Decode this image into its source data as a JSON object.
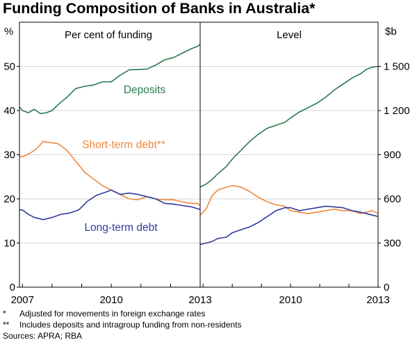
{
  "title": "Funding Composition of Banks in Australia*",
  "colors": {
    "deposits": "#2a7a4e",
    "short_term": "#f0883a",
    "long_term": "#2e3a9c",
    "axis": "#000000"
  },
  "footnotes": [
    {
      "mark": "*",
      "text": "Adjusted for movements in foreign exchange rates"
    },
    {
      "mark": "**",
      "text": "Includes deposits and intragroup funding from non-residents"
    }
  ],
  "sources": "Sources: APRA; RBA",
  "chart_data": [
    {
      "type": "line",
      "panel_title": "Per cent of funding",
      "ylabel": "%",
      "ylim": [
        0,
        60
      ],
      "yticks": [
        "0",
        "10",
        "20",
        "30",
        "40",
        "50"
      ],
      "xlim": [
        2006.9,
        2013.0
      ],
      "xticks": [
        "2007",
        "2010",
        "2013"
      ],
      "series": [
        {
          "name": "Deposits",
          "key": "deposits",
          "x": [
            2006.9,
            2007.0,
            2007.2,
            2007.4,
            2007.6,
            2007.8,
            2008.0,
            2008.2,
            2008.5,
            2008.8,
            2009.1,
            2009.4,
            2009.7,
            2010.0,
            2010.3,
            2010.6,
            2010.9,
            2011.2,
            2011.5,
            2011.8,
            2012.1,
            2012.4,
            2012.7,
            2012.9,
            2013.0
          ],
          "y": [
            40.8,
            40,
            39.5,
            40.3,
            39.3,
            39.5,
            40,
            41.3,
            43,
            45,
            45.5,
            45.8,
            46.5,
            46.5,
            48,
            49.2,
            49.3,
            49.4,
            50.3,
            51.5,
            52,
            53,
            54,
            54.5,
            55
          ]
        },
        {
          "name": "Short-term debt**",
          "key": "short_term",
          "x": [
            2006.9,
            2007.0,
            2007.3,
            2007.5,
            2007.7,
            2008.0,
            2008.2,
            2008.5,
            2008.8,
            2009.1,
            2009.4,
            2009.7,
            2010.0,
            2010.3,
            2010.6,
            2010.9,
            2011.2,
            2011.5,
            2011.8,
            2012.1,
            2012.4,
            2012.7,
            2012.9,
            2013.0
          ],
          "y": [
            29.7,
            29.5,
            30.5,
            31.5,
            33,
            32.7,
            32.5,
            31,
            28.5,
            26,
            24.5,
            23,
            22,
            21,
            20,
            19.8,
            20.5,
            20,
            19.8,
            19.8,
            19.3,
            19,
            19,
            18.5
          ]
        },
        {
          "name": "Long-term debt",
          "key": "long_term",
          "x": [
            2006.9,
            2007.0,
            2007.2,
            2007.4,
            2007.7,
            2008.0,
            2008.3,
            2008.6,
            2008.9,
            2009.2,
            2009.5,
            2009.8,
            2010.0,
            2010.3,
            2010.6,
            2010.9,
            2011.2,
            2011.5,
            2011.8,
            2012.1,
            2012.4,
            2012.7,
            2012.9,
            2013.0
          ],
          "y": [
            17.5,
            17.5,
            16.5,
            15.8,
            15.3,
            15.8,
            16.5,
            16.8,
            17.5,
            19.5,
            20.8,
            21.5,
            22,
            21,
            21.3,
            21,
            20.5,
            20,
            19,
            18.8,
            18.5,
            18.2,
            17.8,
            17.6
          ]
        }
      ],
      "labels": {
        "deposits": "Deposits",
        "short_term": "Short-term debt**",
        "long_term": "Long-term debt"
      }
    },
    {
      "type": "line",
      "panel_title": "Level",
      "ylabel": "$b",
      "ylim": [
        0,
        1800
      ],
      "yticks": [
        "0",
        "300",
        "600",
        "900",
        "1 200",
        "1 500"
      ],
      "xlim": [
        2006.9,
        2013.0
      ],
      "xticks": [
        "2010",
        "2013"
      ],
      "series": [
        {
          "name": "Deposits",
          "key": "deposits",
          "x": [
            2006.9,
            2007.1,
            2007.3,
            2007.5,
            2007.8,
            2008.0,
            2008.3,
            2008.6,
            2008.9,
            2009.2,
            2009.5,
            2009.8,
            2010.0,
            2010.3,
            2010.6,
            2010.9,
            2011.2,
            2011.5,
            2011.8,
            2012.1,
            2012.4,
            2012.6,
            2012.8,
            2013.0
          ],
          "y": [
            680,
            700,
            730,
            770,
            820,
            870,
            930,
            990,
            1040,
            1080,
            1100,
            1120,
            1150,
            1190,
            1220,
            1250,
            1290,
            1340,
            1380,
            1420,
            1450,
            1480,
            1495,
            1500
          ]
        },
        {
          "name": "Short-term debt**",
          "key": "short_term",
          "x": [
            2006.9,
            2007.1,
            2007.3,
            2007.5,
            2007.8,
            2008.0,
            2008.3,
            2008.6,
            2008.9,
            2009.2,
            2009.5,
            2009.8,
            2010.0,
            2010.3,
            2010.6,
            2010.9,
            2011.2,
            2011.5,
            2011.8,
            2012.1,
            2012.4,
            2012.6,
            2012.8,
            2013.0
          ],
          "y": [
            490,
            530,
            620,
            660,
            680,
            690,
            680,
            650,
            610,
            580,
            560,
            550,
            520,
            510,
            500,
            510,
            520,
            530,
            520,
            520,
            500,
            510,
            520,
            500
          ]
        },
        {
          "name": "Long-term debt",
          "key": "long_term",
          "x": [
            2006.9,
            2007.1,
            2007.3,
            2007.5,
            2007.8,
            2008.0,
            2008.3,
            2008.6,
            2008.9,
            2009.2,
            2009.5,
            2009.8,
            2010.0,
            2010.3,
            2010.6,
            2010.9,
            2011.2,
            2011.5,
            2011.8,
            2012.1,
            2012.4,
            2012.6,
            2012.8,
            2013.0
          ],
          "y": [
            290,
            300,
            310,
            330,
            340,
            370,
            390,
            410,
            440,
            480,
            520,
            540,
            540,
            520,
            530,
            540,
            550,
            545,
            540,
            520,
            510,
            500,
            490,
            480
          ]
        }
      ]
    }
  ]
}
